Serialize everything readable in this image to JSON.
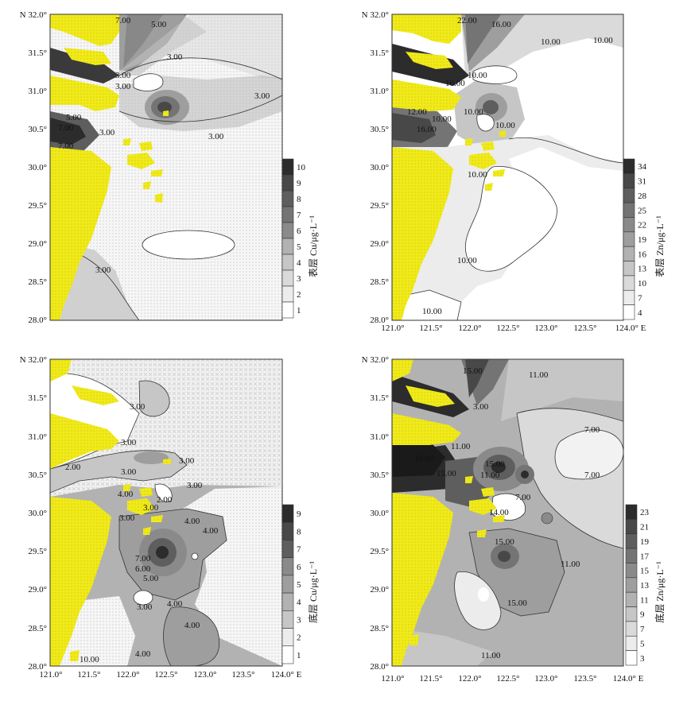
{
  "panels": [
    {
      "id": "surface-cu",
      "legend_title": "表层 Cu/μg·L⁻¹",
      "legend_ticks": [
        "10",
        "9",
        "8",
        "7",
        "6",
        "5",
        "4",
        "3",
        "2",
        "1"
      ],
      "contour_labels": [
        "7.00",
        "5.00",
        "3.00",
        "3.00",
        "3.00",
        "3.00",
        "5.00",
        "7.00",
        "7.00",
        "3.00",
        "3.00",
        "3.00"
      ],
      "x_ticks": [],
      "y_ticks": [
        "N 32.0°",
        "31.5°",
        "31.0°",
        "30.5°",
        "30.0°",
        "29.5°",
        "29.0°",
        "28.5°",
        "28.0°"
      ]
    },
    {
      "id": "surface-zn",
      "legend_title": "表层 Zn/μg·L⁻¹",
      "legend_ticks": [
        "34",
        "31",
        "28",
        "25",
        "22",
        "19",
        "16",
        "13",
        "10",
        "7",
        "4"
      ],
      "contour_labels": [
        "22.00",
        "16.00",
        "10.00",
        "10.00",
        "10.00",
        "10.00",
        "12.00",
        "10.00",
        "10.00",
        "16.00",
        "10.00",
        "10.00",
        "10.00",
        "10.00"
      ],
      "x_ticks": [
        "121.0°",
        "121.5°",
        "122.0°",
        "122.5°",
        "123.0°",
        "123.5°",
        "124.0° E"
      ],
      "y_ticks": [
        "N 32.0°",
        "31.5°",
        "31.0°",
        "30.5°",
        "30.0°",
        "29.5°",
        "29.0°",
        "28.5°",
        "28.0°"
      ]
    },
    {
      "id": "bottom-cu",
      "legend_title": "底层 Cu/μg·L⁻¹",
      "legend_ticks": [
        "9",
        "8",
        "7",
        "6",
        "5",
        "4",
        "3",
        "2",
        "1"
      ],
      "contour_labels": [
        "3.00",
        "3.00",
        "3.00",
        "2.00",
        "3.00",
        "3.00",
        "4.00",
        "2.00",
        "3.00",
        "3.00",
        "4.00",
        "4.00",
        "7.00",
        "6.00",
        "5.00",
        "3.00",
        "4.00",
        "4.00",
        "4.00",
        "10.00"
      ],
      "x_ticks": [
        "121.0°",
        "121.5°",
        "122.0°",
        "122.5°",
        "123.0°",
        "123.5°",
        "124.0° E"
      ],
      "y_ticks": [
        "N 32.0°",
        "31.5°",
        "31.0°",
        "30.5°",
        "30.0°",
        "29.5°",
        "29.0°",
        "28.5°",
        "28.0°"
      ]
    },
    {
      "id": "bottom-zn",
      "legend_title": "底层 Zn/μg·L⁻¹",
      "legend_ticks": [
        "23",
        "21",
        "19",
        "17",
        "15",
        "13",
        "11",
        "9",
        "7",
        "5",
        "3"
      ],
      "contour_labels": [
        "15.00",
        "11.00",
        "3.00",
        "11.00",
        "19.00",
        "15.00",
        "15.00",
        "11.00",
        "7.00",
        "7.00",
        "7.00",
        "14.00",
        "15.00",
        "11.00",
        "15.00",
        "11.00"
      ],
      "x_ticks": [
        "121.0°",
        "121.5°",
        "122.0°",
        "122.5°",
        "123.0°",
        "123.5°",
        "124.0° E"
      ],
      "y_ticks": [
        "N 32.0°",
        "31.5°",
        "31.0°",
        "30.5°",
        "30.0°",
        "29.5°",
        "29.0°",
        "28.5°",
        "28.0°"
      ]
    }
  ],
  "colors": {
    "land": "#f0ea1a",
    "land_dot": "#c8c012",
    "frame": "#333333",
    "ramp": [
      "#ffffff",
      "#ececec",
      "#dadada",
      "#c6c6c6",
      "#b2b2b2",
      "#9e9e9e",
      "#8a8a8a",
      "#747474",
      "#5e5e5e",
      "#484848",
      "#2c2c2c"
    ]
  }
}
